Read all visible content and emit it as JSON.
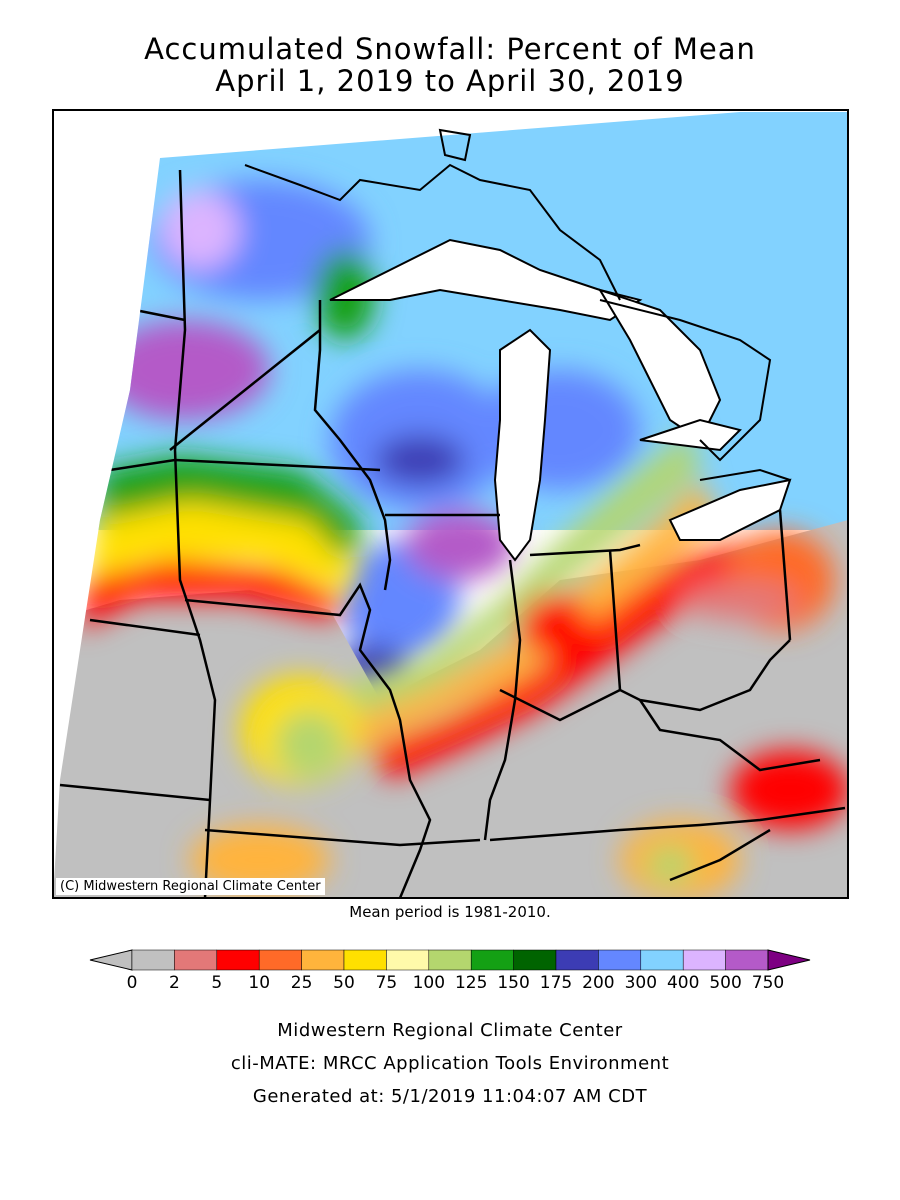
{
  "title": {
    "line1": "Accumulated Snowfall: Percent of Mean",
    "line2": "April 1, 2019 to April 30, 2019"
  },
  "map": {
    "copyright": "(C) Midwestern Regional Climate Center",
    "mean_period": "Mean period is 1981-2010."
  },
  "legend": {
    "ticks": [
      "0",
      "2",
      "5",
      "10",
      "25",
      "50",
      "75",
      "100",
      "125",
      "150",
      "175",
      "200",
      "300",
      "400",
      "500",
      "750"
    ],
    "colors": [
      "#c0c0c0",
      "#c0c0c0",
      "#e37878",
      "#ff0000",
      "#ff6a28",
      "#ffb43c",
      "#ffe000",
      "#fffaaa",
      "#b4d66e",
      "#14a014",
      "#006400",
      "#3c3cb4",
      "#6487ff",
      "#82d2ff",
      "#dcb4ff",
      "#b45ac8",
      "#7d0082"
    ]
  },
  "footer": {
    "line1": "Midwestern Regional Climate Center",
    "line2": "cli-MATE: MRCC Application Tools Environment",
    "line3": "Generated at: 5/1/2019 11:04:07 AM CDT"
  }
}
